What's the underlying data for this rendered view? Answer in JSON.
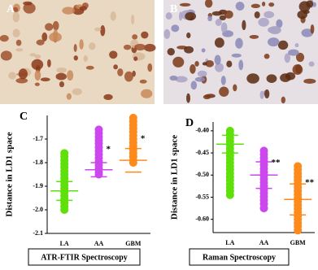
{
  "images": [
    {
      "label": "A"
    },
    {
      "label": "B"
    }
  ],
  "chart_data": [
    {
      "type": "strip",
      "panel": "C",
      "ylabel": "Distance in LD1 space",
      "footer": "ATR-FTIR Spectroscopy",
      "categories": [
        "LA",
        "AA",
        "GBM"
      ],
      "colors": [
        "#5fe00a",
        "#cc47ee",
        "#ff8a1c"
      ],
      "points": [
        [
          -1.76,
          -1.775,
          -1.79,
          -1.805,
          -1.82,
          -1.835,
          -1.85,
          -1.865,
          -1.88,
          -1.895,
          -1.91,
          -1.925,
          -1.94,
          -1.955,
          -1.97,
          -1.985,
          -2.0
        ],
        [
          -1.66,
          -1.675,
          -1.69,
          -1.705,
          -1.72,
          -1.735,
          -1.75,
          -1.765,
          -1.78,
          -1.795,
          -1.81,
          -1.825,
          -1.84,
          -1.85
        ],
        [
          -1.61,
          -1.625,
          -1.64,
          -1.655,
          -1.67,
          -1.685,
          -1.7,
          -1.715,
          -1.73,
          -1.745,
          -1.76,
          -1.775,
          -1.79,
          -1.8
        ]
      ],
      "means": [
        -1.92,
        -1.83,
        -1.79
      ],
      "sds": [
        0.04,
        0.03,
        0.05
      ],
      "annotations": [
        {
          "category": "AA",
          "text": "*"
        },
        {
          "category": "GBM",
          "text": "*"
        }
      ],
      "ylim": [
        -2.1,
        -1.6
      ],
      "yticks": [
        {
          "value": -2.1,
          "label": "-2.1"
        },
        {
          "value": -2.0,
          "label": "-2.0"
        },
        {
          "value": -1.9,
          "label": "-1.9"
        },
        {
          "value": -1.8,
          "label": "-1.8"
        },
        {
          "value": -1.7,
          "label": "-1.7"
        }
      ]
    },
    {
      "type": "strip",
      "panel": "D",
      "ylabel": "Distance in LD1 space",
      "footer": "Raman Spectroscopy",
      "categories": [
        "LA",
        "AA",
        "GBM"
      ],
      "colors": [
        "#5fe00a",
        "#cc47ee",
        "#ff8a1c"
      ],
      "points": [
        [
          -0.4,
          -0.408,
          -0.416,
          -0.424,
          -0.432,
          -0.44,
          -0.448,
          -0.456,
          -0.464,
          -0.472,
          -0.48,
          -0.488,
          -0.496,
          -0.504,
          -0.512,
          -0.52,
          -0.528,
          -0.536,
          -0.545
        ],
        [
          -0.445,
          -0.453,
          -0.461,
          -0.469,
          -0.477,
          -0.485,
          -0.493,
          -0.501,
          -0.509,
          -0.517,
          -0.525,
          -0.533,
          -0.541,
          -0.549,
          -0.557,
          -0.565,
          -0.575
        ],
        [
          -0.48,
          -0.488,
          -0.496,
          -0.504,
          -0.512,
          -0.52,
          -0.528,
          -0.536,
          -0.544,
          -0.552,
          -0.56,
          -0.568,
          -0.576,
          -0.584,
          -0.592,
          -0.6,
          -0.608,
          -0.616,
          -0.625
        ]
      ],
      "means": [
        -0.43,
        -0.5,
        -0.555
      ],
      "sds": [
        0.02,
        0.03,
        0.035
      ],
      "annotations": [
        {
          "category": "AA",
          "text": "**"
        },
        {
          "category": "GBM",
          "text": "**"
        }
      ],
      "ylim": [
        -0.63,
        -0.38
      ],
      "yticks": [
        {
          "value": -0.6,
          "label": "-0.60"
        },
        {
          "value": -0.55,
          "label": "-0.55"
        },
        {
          "value": -0.5,
          "label": "-0.50"
        },
        {
          "value": -0.45,
          "label": "-0.45"
        },
        {
          "value": -0.4,
          "label": "-0.40"
        }
      ]
    }
  ]
}
